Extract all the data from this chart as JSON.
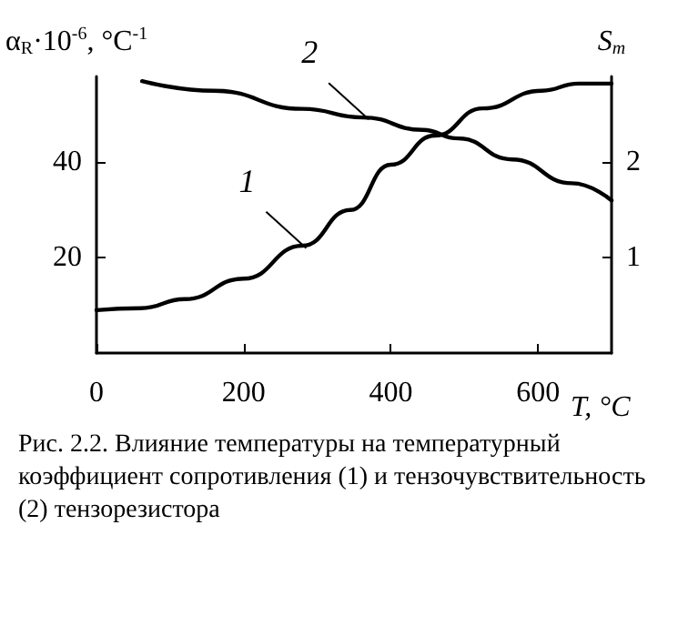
{
  "chart_data": {
    "type": "line",
    "xlabel": "T, °C",
    "ylabel": "α$_{R}$·10$^{-6}$, °C$^{-1}$",
    "y2label": "S$_{т}$",
    "xlim": [
      0,
      700
    ],
    "xticks": [
      0,
      200,
      400,
      600
    ],
    "ylim": [
      0,
      58
    ],
    "yticks": [
      20,
      40
    ],
    "y2lim": [
      0,
      2.9
    ],
    "y2ticks": [
      1,
      2
    ],
    "grid": false,
    "marker": "none",
    "line_style": "solid",
    "series": [
      {
        "color": "#000000",
        "x": [
          0,
          60,
          120,
          200,
          280,
          345,
          400,
          460,
          525,
          605,
          655,
          700
        ],
        "values": [
          9,
          9.4,
          11.3,
          15.6,
          22.5,
          30,
          39.5,
          45.6,
          51.3,
          55,
          56.5,
          56.5
        ]
      },
      {
        "color": "#000000",
        "axis": "y2",
        "x": [
          62,
          160,
          280,
          362,
          443,
          492,
          565,
          646,
          700
        ],
        "values": [
          2.85,
          2.75,
          2.56,
          2.47,
          2.34,
          2.25,
          2.03,
          1.78,
          1.6
        ]
      }
    ],
    "annotations": [
      {
        "text": "1",
        "x": 285,
        "y": 22
      },
      {
        "text": "2",
        "x": 370,
        "y": 49
      },
      "Рис. 2.2. Влияние температуры на температурный коэффициент сопротивления (1) и тензочувствительность (2) тензорезистора"
    ]
  }
}
